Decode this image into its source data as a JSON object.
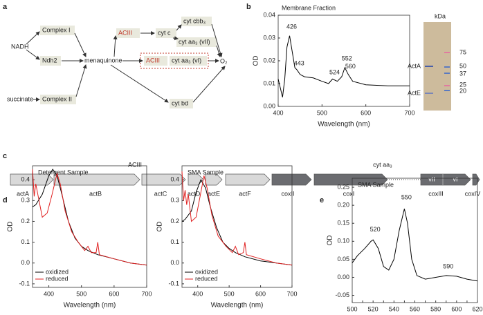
{
  "panel_labels": [
    "a",
    "b",
    "c",
    "d",
    "e"
  ],
  "pathway": {
    "nodes": [
      "NADH",
      "Complex I",
      "Ndh2",
      "succinate",
      "Complex II",
      "menaquinone",
      "ACIII",
      "cyt c",
      "cyt cbb₃",
      "cyt aa₃ (vII)",
      "ACIII",
      "cyt aa₃ (vI)",
      "O₂",
      "cyt bd"
    ]
  },
  "gel": {
    "unit": "kDa",
    "markers": [
      "75",
      "50",
      "37",
      "25",
      "20"
    ],
    "bands": [
      "ActA",
      "ActE"
    ]
  },
  "operon": {
    "groups": [
      "ACIII",
      "cyt aa₃"
    ],
    "genes": [
      "actA",
      "actB",
      "actC",
      "actD",
      "actE",
      "actF",
      "coxII",
      "coxI",
      "coxIII",
      "coxIV"
    ],
    "subunits": [
      "vII",
      "vI"
    ]
  },
  "chart_data": [
    {
      "type": "line",
      "title": "Membrane Fraction",
      "xlabel": "Wavelength (nm)",
      "ylabel": "OD",
      "xlim": [
        400,
        700
      ],
      "ylim": [
        0,
        0.04
      ],
      "xticks": [
        400,
        500,
        600,
        700
      ],
      "yticks": [
        {
          "value": 0,
          "label": "0.00"
        },
        0.01,
        0.02,
        0.03,
        0.04
      ],
      "series": [
        {
          "color": "#000000",
          "x": [
            400,
            405,
            410,
            415,
            420,
            426,
            432,
            438,
            443,
            450,
            460,
            480,
            500,
            515,
            524,
            535,
            545,
            552,
            560,
            570,
            600,
            650,
            700
          ],
          "values": [
            0.012,
            0.008,
            0.004,
            0.012,
            0.026,
            0.031,
            0.024,
            0.017,
            0.016,
            0.014,
            0.013,
            0.0125,
            0.011,
            0.01,
            0.012,
            0.011,
            0.013,
            0.017,
            0.014,
            0.011,
            0.0095,
            0.009,
            0.009
          ]
        }
      ],
      "annotations": [
        {
          "x": 426,
          "y": 0.033
        },
        {
          "x": 443,
          "y": 0.017
        },
        {
          "x": 524,
          "y": 0.013
        },
        {
          "x": 552,
          "y": 0.019
        },
        {
          "x": 560,
          "y": 0.0155
        }
      ]
    },
    {
      "type": "line",
      "title": "Detergent Sample",
      "xlabel": "Wavelength (nm)",
      "ylabel": "OD",
      "xlim": [
        350,
        700
      ],
      "ylim": [
        -0.117,
        0.467
      ],
      "xticks": [
        400,
        500,
        600,
        700
      ],
      "yticks": [
        -0.1,
        {
          "value": 0,
          "label": "0.0"
        },
        0.1,
        0.2,
        0.3,
        0.4
      ],
      "legend": "lower left",
      "series": [
        {
          "name": "oxidized",
          "color": "#000000",
          "x": [
            350,
            360,
            380,
            400,
            412,
            425,
            440,
            460,
            480,
            500,
            520,
            550,
            600,
            650,
            700
          ],
          "values": [
            0.27,
            0.28,
            0.33,
            0.42,
            0.45,
            0.42,
            0.33,
            0.2,
            0.12,
            0.08,
            0.06,
            0.04,
            0.02,
            0,
            -0.01
          ]
        },
        {
          "name": "reduced",
          "color": "#e02020",
          "x": [
            350,
            355,
            360,
            370,
            380,
            395,
            410,
            425,
            435,
            450,
            470,
            490,
            510,
            520,
            530,
            545,
            550,
            555,
            600,
            650,
            700
          ],
          "values": [
            0.45,
            0.32,
            0.38,
            0.3,
            0.22,
            0.24,
            0.33,
            0.43,
            0.38,
            0.25,
            0.15,
            0.1,
            0.06,
            0.08,
            0.05,
            0.05,
            0.1,
            0.04,
            0.02,
            0,
            -0.01
          ]
        }
      ]
    },
    {
      "type": "line",
      "title": "SMA Sample",
      "xlabel": "Wavelength (nm)",
      "ylabel": "OD",
      "xlim": [
        350,
        700
      ],
      "ylim": [
        -0.117,
        0.467
      ],
      "xticks": [
        400,
        500,
        600,
        700
      ],
      "yticks": [
        -0.1,
        {
          "value": 0,
          "label": "0.0"
        },
        0.1,
        0.2,
        0.3,
        0.4
      ],
      "legend": "lower left",
      "series": [
        {
          "name": "oxidized",
          "color": "#000000",
          "x": [
            350,
            360,
            380,
            395,
            410,
            425,
            440,
            460,
            480,
            500,
            520,
            550,
            600,
            650,
            700
          ],
          "values": [
            0.2,
            0.21,
            0.25,
            0.34,
            0.4,
            0.36,
            0.27,
            0.17,
            0.1,
            0.07,
            0.05,
            0.03,
            0.01,
            0,
            -0.01
          ]
        },
        {
          "name": "reduced",
          "color": "#e02020",
          "x": [
            350,
            355,
            360,
            365,
            370,
            380,
            395,
            410,
            420,
            430,
            445,
            465,
            490,
            510,
            520,
            530,
            545,
            550,
            555,
            600,
            650,
            700
          ],
          "values": [
            0.44,
            0.3,
            0.35,
            0.28,
            0.33,
            0.2,
            0.22,
            0.34,
            0.42,
            0.36,
            0.23,
            0.13,
            0.08,
            0.05,
            0.08,
            0.04,
            0.05,
            0.1,
            0.04,
            0.02,
            0,
            -0.01
          ]
        }
      ]
    },
    {
      "type": "line",
      "title": "SMA Sample",
      "xlabel": "Wavelength (nm)",
      "ylabel": "OD",
      "xlim": [
        500,
        620
      ],
      "ylim": [
        -0.07,
        0.275
      ],
      "xticks": [
        500,
        510,
        520,
        530,
        540,
        550,
        560,
        570,
        580,
        590,
        600,
        610,
        620
      ],
      "yticks": [
        -0.05,
        {
          "value": 0,
          "label": "0.00"
        },
        0.05,
        {
          "value": 0.1,
          "label": "0.10"
        },
        0.15,
        {
          "value": 0.2,
          "label": "0.20"
        },
        0.25
      ],
      "series": [
        {
          "color": "#000000",
          "x": [
            500,
            505,
            512,
            518,
            520,
            525,
            530,
            535,
            540,
            545,
            550,
            553,
            557,
            562,
            570,
            580,
            590,
            600,
            610,
            620
          ],
          "values": [
            0.04,
            0.06,
            0.08,
            0.1,
            0.104,
            0.08,
            0.03,
            0.02,
            0.05,
            0.13,
            0.19,
            0.15,
            0.05,
            0.005,
            -0.005,
            0,
            0.005,
            0.003,
            -0.005,
            -0.01
          ]
        }
      ],
      "annotations": [
        {
          "x": 520,
          "y": 0.12
        },
        {
          "x": 550,
          "y": 0.21
        },
        {
          "x": 590,
          "y": 0.018
        }
      ]
    }
  ]
}
